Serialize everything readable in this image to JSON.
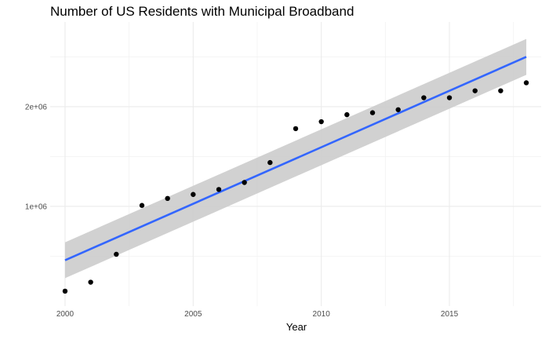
{
  "chart_data": {
    "type": "scatter",
    "title": "Number of US Residents with Municipal Broadband",
    "xlabel": "Year",
    "ylabel": "",
    "xlim": [
      1999.42,
      2018.58
    ],
    "ylim": [
      0,
      2850000
    ],
    "x_ticks": [
      2000,
      2005,
      2010,
      2015
    ],
    "x_tick_labels": [
      "2000",
      "2005",
      "2010",
      "2015"
    ],
    "y_ticks": [
      1000000,
      2000000
    ],
    "y_tick_labels": [
      "1e+06",
      "2e+06"
    ],
    "grid": true,
    "series": [
      {
        "x": [
          2000,
          2001,
          2002,
          2003,
          2004,
          2005,
          2006,
          2007,
          2008,
          2009,
          2010,
          2011,
          2012,
          2013,
          2014,
          2015,
          2016,
          2017,
          2018
        ],
        "y": [
          150000,
          240000,
          520000,
          1010000,
          1080000,
          1120000,
          1170000,
          1240000,
          1440000,
          1780000,
          1850000,
          1920000,
          1940000,
          1970000,
          2090000,
          2090000,
          2160000,
          2160000,
          2240000
        ]
      }
    ],
    "fit": {
      "method": "linear",
      "x": [
        2000,
        2018
      ],
      "y": [
        460000,
        2500000
      ],
      "ci_lower": [
        280000,
        2320000
      ],
      "ci_upper": [
        640000,
        2680000
      ],
      "line_color": "#3366ff",
      "band_color": "#cccccc"
    },
    "point_color": "#000000"
  }
}
